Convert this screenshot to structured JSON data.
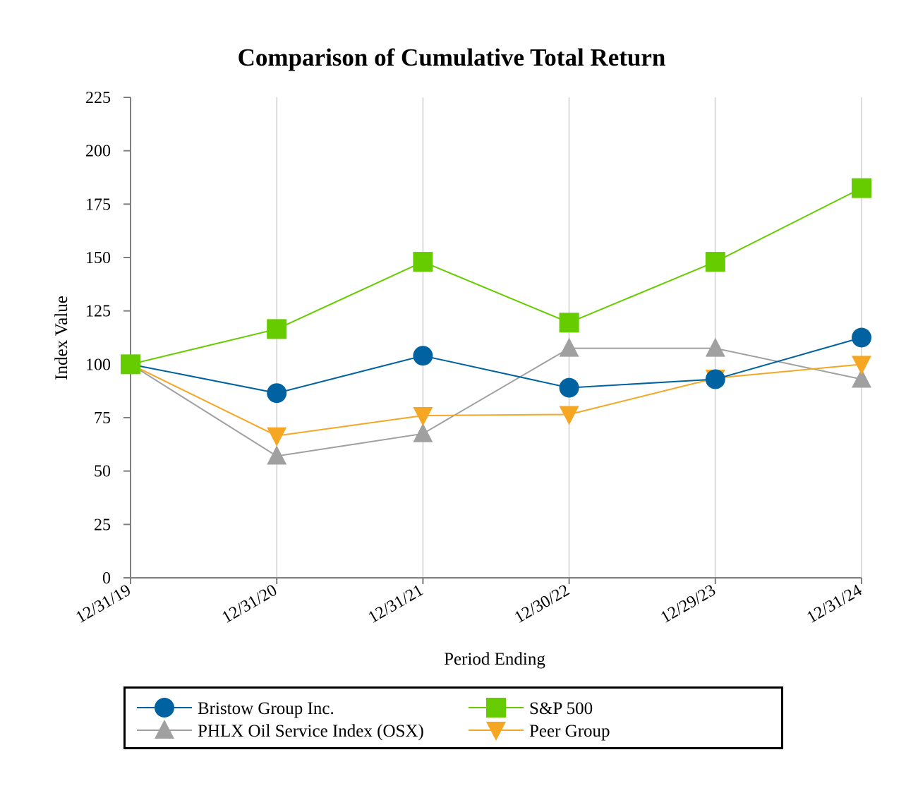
{
  "chart_data": {
    "type": "line",
    "title": "Comparison of Cumulative Total Return",
    "xlabel": "Period Ending",
    "ylabel": "Index Value",
    "categories": [
      "12/31/19",
      "12/31/20",
      "12/31/21",
      "12/30/22",
      "12/29/23",
      "12/31/24"
    ],
    "ylim": [
      0,
      225
    ],
    "yticks": [
      0,
      25,
      50,
      75,
      100,
      125,
      150,
      175,
      200,
      225
    ],
    "grid": "vertical",
    "legend_position": "bottom",
    "series": [
      {
        "name": "Bristow Group Inc.",
        "color": "#0062a0",
        "marker": "circle",
        "values": [
          100,
          86.5,
          104,
          89,
          93,
          112.5
        ]
      },
      {
        "name": "S&P 500",
        "color": "#66cc00",
        "marker": "square",
        "values": [
          100,
          116.5,
          148,
          119.5,
          148,
          182.5
        ]
      },
      {
        "name": "PHLX Oil Service Index (OSX)",
        "color": "#a0a0a0",
        "marker": "triangle-up",
        "values": [
          100,
          57,
          67.5,
          107.5,
          107.5,
          93
        ]
      },
      {
        "name": "Peer Group",
        "color": "#f5a623",
        "marker": "triangle-down",
        "values": [
          100,
          66.5,
          76,
          76.5,
          93.5,
          100
        ]
      }
    ]
  }
}
